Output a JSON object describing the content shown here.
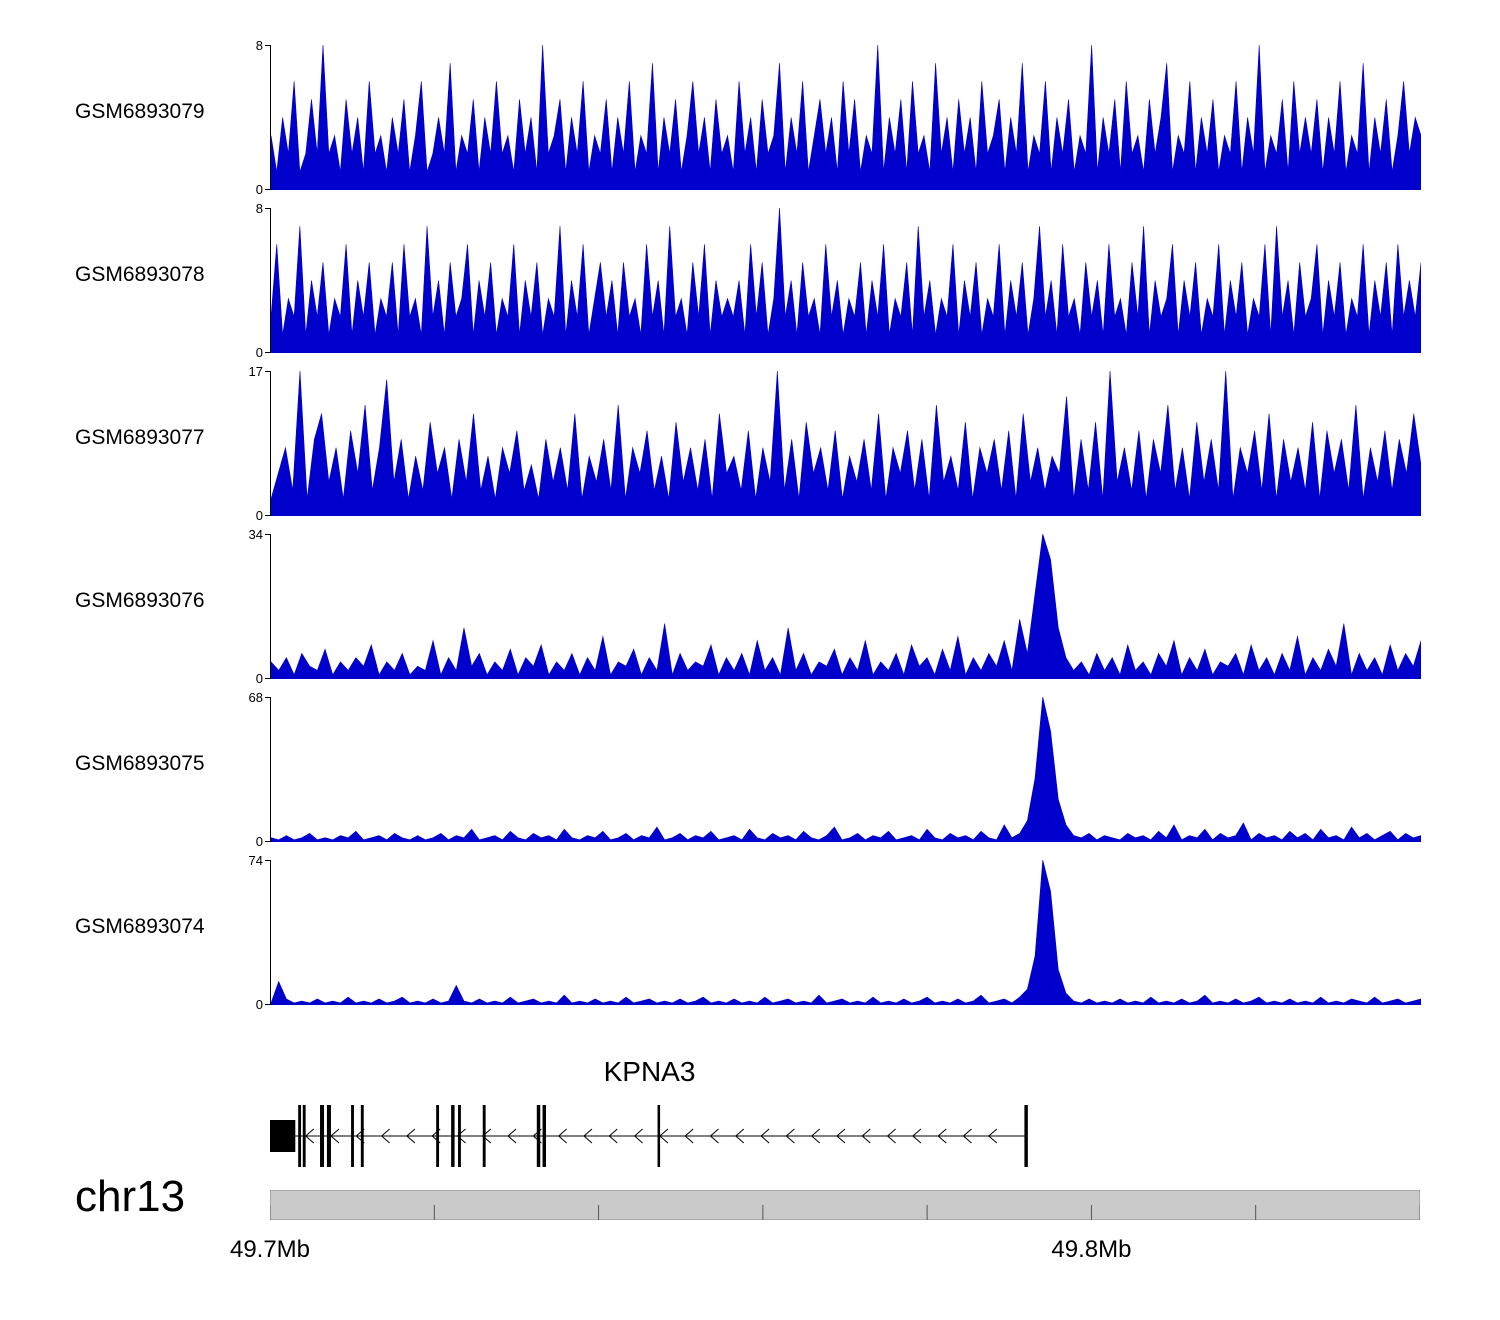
{
  "figure": {
    "signal_color": "#0000CC",
    "axis_color": "#000000",
    "ruler_fill": "#CACACA",
    "ruler_stroke": "#8A8A8A"
  },
  "chart_data": {
    "type": "area",
    "description": "Genome browser coverage tracks over chr13 KPNA3 locus",
    "region": {
      "chromosome": "chr13",
      "start_label": "49.7Mb",
      "end_label": "49.8Mb",
      "ticks": [
        0,
        0.1429,
        0.2857,
        0.4286,
        0.5714,
        0.7143,
        0.8571,
        1.0
      ],
      "labels": [
        {
          "text": "49.7Mb",
          "frac": 0.0
        },
        {
          "text": "49.8Mb",
          "frac": 0.7143
        }
      ]
    },
    "tracks": [
      {
        "name": "GSM6893079",
        "ymax": 8,
        "yzero": "0",
        "values": [
          3,
          1,
          4,
          2,
          6,
          1,
          2,
          5,
          2,
          8,
          2,
          3,
          1,
          5,
          2,
          4,
          1,
          6,
          2,
          3,
          1,
          4,
          2,
          5,
          1,
          3,
          6,
          1,
          2,
          4,
          2,
          7,
          1,
          3,
          2,
          5,
          1,
          4,
          2,
          6,
          2,
          3,
          1,
          5,
          2,
          4,
          1,
          8,
          2,
          3,
          5,
          1,
          4,
          2,
          6,
          1,
          3,
          2,
          5,
          1,
          4,
          2,
          6,
          1,
          3,
          2,
          7,
          1,
          4,
          2,
          5,
          1,
          3,
          6,
          2,
          4,
          1,
          5,
          2,
          3,
          1,
          6,
          2,
          4,
          1,
          5,
          2,
          3,
          7,
          1,
          4,
          2,
          6,
          1,
          3,
          5,
          2,
          4,
          1,
          6,
          2,
          5,
          1,
          3,
          2,
          8,
          1,
          4,
          2,
          5,
          1,
          6,
          2,
          3,
          1,
          7,
          2,
          4,
          1,
          5,
          2,
          4,
          1,
          6,
          2,
          3,
          5,
          1,
          4,
          2,
          7,
          1,
          3,
          2,
          6,
          1,
          4,
          2,
          5,
          1,
          3,
          2,
          8,
          1,
          4,
          2,
          5,
          1,
          6,
          2,
          3,
          1,
          5,
          2,
          4,
          7,
          1,
          3,
          2,
          6,
          1,
          4,
          2,
          5,
          1,
          3,
          2,
          6,
          1,
          4,
          2,
          8,
          1,
          3,
          2,
          5,
          1,
          6,
          2,
          4,
          2,
          5,
          1,
          4,
          2,
          6,
          1,
          3,
          2,
          7,
          1,
          4,
          2,
          5,
          1,
          3,
          6,
          2,
          4,
          3
        ]
      },
      {
        "name": "GSM6893078",
        "ymax": 8,
        "yzero": "0",
        "values": [
          2,
          6,
          1,
          3,
          2,
          7,
          1,
          4,
          2,
          5,
          1,
          3,
          2,
          6,
          1,
          4,
          2,
          5,
          1,
          3,
          2,
          5,
          1,
          6,
          2,
          3,
          1,
          7,
          2,
          4,
          1,
          5,
          2,
          3,
          6,
          1,
          4,
          2,
          5,
          1,
          3,
          2,
          6,
          1,
          4,
          2,
          5,
          1,
          3,
          2,
          7,
          1,
          4,
          2,
          6,
          1,
          3,
          5,
          2,
          4,
          1,
          5,
          2,
          3,
          1,
          6,
          2,
          4,
          1,
          7,
          2,
          3,
          1,
          5,
          2,
          6,
          1,
          4,
          2,
          3,
          2,
          4,
          1,
          6,
          2,
          5,
          1,
          3,
          8,
          2,
          4,
          1,
          5,
          2,
          3,
          1,
          6,
          2,
          4,
          1,
          3,
          2,
          5,
          1,
          4,
          2,
          6,
          1,
          3,
          2,
          5,
          1,
          7,
          2,
          4,
          1,
          3,
          2,
          6,
          1,
          4,
          2,
          5,
          1,
          3,
          2,
          6,
          1,
          4,
          2,
          5,
          1,
          3,
          7,
          2,
          4,
          1,
          6,
          2,
          3,
          1,
          5,
          2,
          4,
          1,
          6,
          2,
          3,
          1,
          5,
          2,
          7,
          1,
          4,
          2,
          3,
          6,
          1,
          4,
          2,
          5,
          1,
          3,
          2,
          6,
          1,
          4,
          2,
          5,
          1,
          3,
          2,
          6,
          1,
          7,
          2,
          4,
          1,
          5,
          2,
          3,
          6,
          1,
          4,
          2,
          5,
          1,
          3,
          2,
          6,
          1,
          4,
          2,
          5,
          1,
          6,
          2,
          4,
          2,
          5
        ]
      },
      {
        "name": "GSM6893077",
        "ymax": 17,
        "yzero": "0",
        "values": [
          2,
          5,
          8,
          3,
          17,
          2,
          9,
          12,
          4,
          8,
          2,
          10,
          5,
          13,
          3,
          8,
          16,
          4,
          9,
          2,
          7,
          3,
          11,
          5,
          8,
          2,
          9,
          4,
          12,
          3,
          7,
          2,
          8,
          5,
          10,
          3,
          6,
          2,
          9,
          4,
          8,
          3,
          12,
          2,
          7,
          4,
          9,
          3,
          13,
          2,
          8,
          5,
          10,
          3,
          7,
          2,
          11,
          4,
          8,
          3,
          9,
          2,
          12,
          5,
          7,
          3,
          10,
          2,
          8,
          4,
          17,
          3,
          9,
          2,
          11,
          5,
          8,
          3,
          10,
          2,
          7,
          4,
          9,
          3,
          12,
          2,
          8,
          5,
          10,
          3,
          9,
          2,
          13,
          4,
          7,
          3,
          11,
          2,
          8,
          5,
          9,
          3,
          10,
          2,
          12,
          4,
          8,
          3,
          7,
          5,
          14,
          2,
          9,
          3,
          11,
          2,
          17,
          4,
          8,
          3,
          10,
          2,
          9,
          5,
          13,
          3,
          8,
          2,
          11,
          4,
          9,
          3,
          17,
          2,
          8,
          5,
          10,
          3,
          12,
          2,
          9,
          4,
          8,
          3,
          11,
          2,
          10,
          5,
          9,
          3,
          13,
          2,
          8,
          4,
          10,
          3,
          9,
          5,
          12,
          6
        ]
      },
      {
        "name": "GSM6893076",
        "ymax": 34,
        "yzero": "0",
        "values": [
          4,
          2,
          5,
          1,
          6,
          3,
          2,
          7,
          1,
          4,
          2,
          5,
          3,
          8,
          1,
          4,
          2,
          6,
          1,
          3,
          2,
          9,
          1,
          5,
          2,
          12,
          3,
          6,
          1,
          4,
          2,
          7,
          1,
          5,
          3,
          8,
          1,
          4,
          2,
          6,
          1,
          5,
          2,
          10,
          1,
          4,
          3,
          7,
          1,
          5,
          2,
          13,
          1,
          6,
          2,
          4,
          3,
          8,
          1,
          5,
          2,
          6,
          1,
          9,
          2,
          5,
          1,
          12,
          2,
          6,
          1,
          4,
          3,
          7,
          1,
          5,
          2,
          9,
          1,
          4,
          2,
          6,
          1,
          8,
          3,
          5,
          1,
          7,
          2,
          10,
          1,
          5,
          2,
          6,
          3,
          9,
          2,
          14,
          6,
          20,
          34,
          28,
          12,
          5,
          2,
          4,
          1,
          6,
          2,
          5,
          1,
          8,
          2,
          4,
          1,
          6,
          3,
          9,
          1,
          5,
          2,
          7,
          1,
          4,
          3,
          6,
          1,
          8,
          2,
          5,
          1,
          6,
          2,
          10,
          1,
          5,
          2,
          7,
          3,
          13,
          1,
          6,
          2,
          5,
          1,
          8,
          2,
          6,
          3,
          9
        ]
      },
      {
        "name": "GSM6893075",
        "ymax": 68,
        "yzero": "0",
        "values": [
          2,
          1,
          3,
          1,
          2,
          4,
          1,
          2,
          1,
          3,
          2,
          5,
          1,
          2,
          3,
          1,
          4,
          2,
          1,
          3,
          1,
          2,
          4,
          1,
          3,
          2,
          6,
          1,
          2,
          3,
          1,
          5,
          2,
          1,
          4,
          2,
          3,
          1,
          6,
          2,
          1,
          3,
          2,
          5,
          1,
          2,
          4,
          1,
          3,
          2,
          7,
          1,
          2,
          4,
          1,
          3,
          2,
          5,
          1,
          2,
          3,
          1,
          6,
          2,
          1,
          4,
          2,
          3,
          1,
          5,
          2,
          1,
          3,
          7,
          1,
          2,
          4,
          1,
          3,
          2,
          5,
          1,
          2,
          3,
          1,
          6,
          2,
          1,
          4,
          2,
          3,
          1,
          5,
          2,
          1,
          8,
          2,
          4,
          10,
          30,
          68,
          52,
          20,
          8,
          3,
          2,
          4,
          1,
          3,
          2,
          1,
          4,
          2,
          3,
          1,
          5,
          2,
          8,
          1,
          3,
          2,
          6,
          1,
          4,
          2,
          3,
          9,
          1,
          4,
          2,
          3,
          1,
          5,
          2,
          4,
          1,
          6,
          2,
          3,
          1,
          7,
          2,
          4,
          1,
          3,
          5,
          1,
          4,
          2,
          3
        ]
      },
      {
        "name": "GSM6893074",
        "ymax": 74,
        "yzero": "0",
        "values": [
          1,
          12,
          3,
          1,
          2,
          1,
          3,
          1,
          2,
          1,
          4,
          1,
          2,
          1,
          3,
          1,
          2,
          4,
          1,
          2,
          1,
          3,
          1,
          2,
          10,
          2,
          1,
          3,
          1,
          2,
          1,
          4,
          1,
          2,
          3,
          1,
          2,
          1,
          5,
          1,
          2,
          1,
          3,
          1,
          2,
          1,
          4,
          1,
          2,
          3,
          1,
          2,
          1,
          3,
          1,
          2,
          4,
          1,
          2,
          1,
          3,
          1,
          2,
          1,
          4,
          1,
          2,
          3,
          1,
          2,
          1,
          5,
          1,
          2,
          3,
          1,
          2,
          1,
          4,
          1,
          2,
          1,
          3,
          1,
          2,
          4,
          1,
          2,
          1,
          3,
          1,
          2,
          5,
          1,
          2,
          3,
          1,
          4,
          8,
          25,
          74,
          58,
          18,
          6,
          2,
          1,
          3,
          1,
          2,
          1,
          3,
          1,
          2,
          1,
          4,
          1,
          2,
          1,
          3,
          1,
          2,
          5,
          1,
          2,
          1,
          3,
          1,
          2,
          4,
          1,
          2,
          1,
          3,
          1,
          2,
          1,
          4,
          1,
          2,
          1,
          3,
          2,
          1,
          4,
          1,
          2,
          3,
          1,
          2,
          3
        ]
      }
    ],
    "gene": {
      "name": "KPNA3",
      "strand": "-",
      "line_start": 0.011,
      "line_end": 0.657,
      "exons": [
        {
          "x": 0.0,
          "w": 0.022,
          "style": "box"
        },
        {
          "x": 0.0245,
          "w": 0.0025,
          "style": "tall"
        },
        {
          "x": 0.0285,
          "w": 0.0025,
          "style": "tall"
        },
        {
          "x": 0.0435,
          "w": 0.0035,
          "style": "tall"
        },
        {
          "x": 0.0495,
          "w": 0.0035,
          "style": "tall"
        },
        {
          "x": 0.0705,
          "w": 0.0025,
          "style": "tall"
        },
        {
          "x": 0.079,
          "w": 0.0025,
          "style": "tall"
        },
        {
          "x": 0.1445,
          "w": 0.0025,
          "style": "tall"
        },
        {
          "x": 0.1575,
          "w": 0.003,
          "style": "tall"
        },
        {
          "x": 0.1635,
          "w": 0.0025,
          "style": "tall"
        },
        {
          "x": 0.185,
          "w": 0.0025,
          "style": "tall"
        },
        {
          "x": 0.232,
          "w": 0.003,
          "style": "tall"
        },
        {
          "x": 0.237,
          "w": 0.003,
          "style": "tall"
        },
        {
          "x": 0.337,
          "w": 0.0022,
          "style": "tall"
        },
        {
          "x": 0.656,
          "w": 0.003,
          "style": "tall"
        }
      ]
    }
  }
}
